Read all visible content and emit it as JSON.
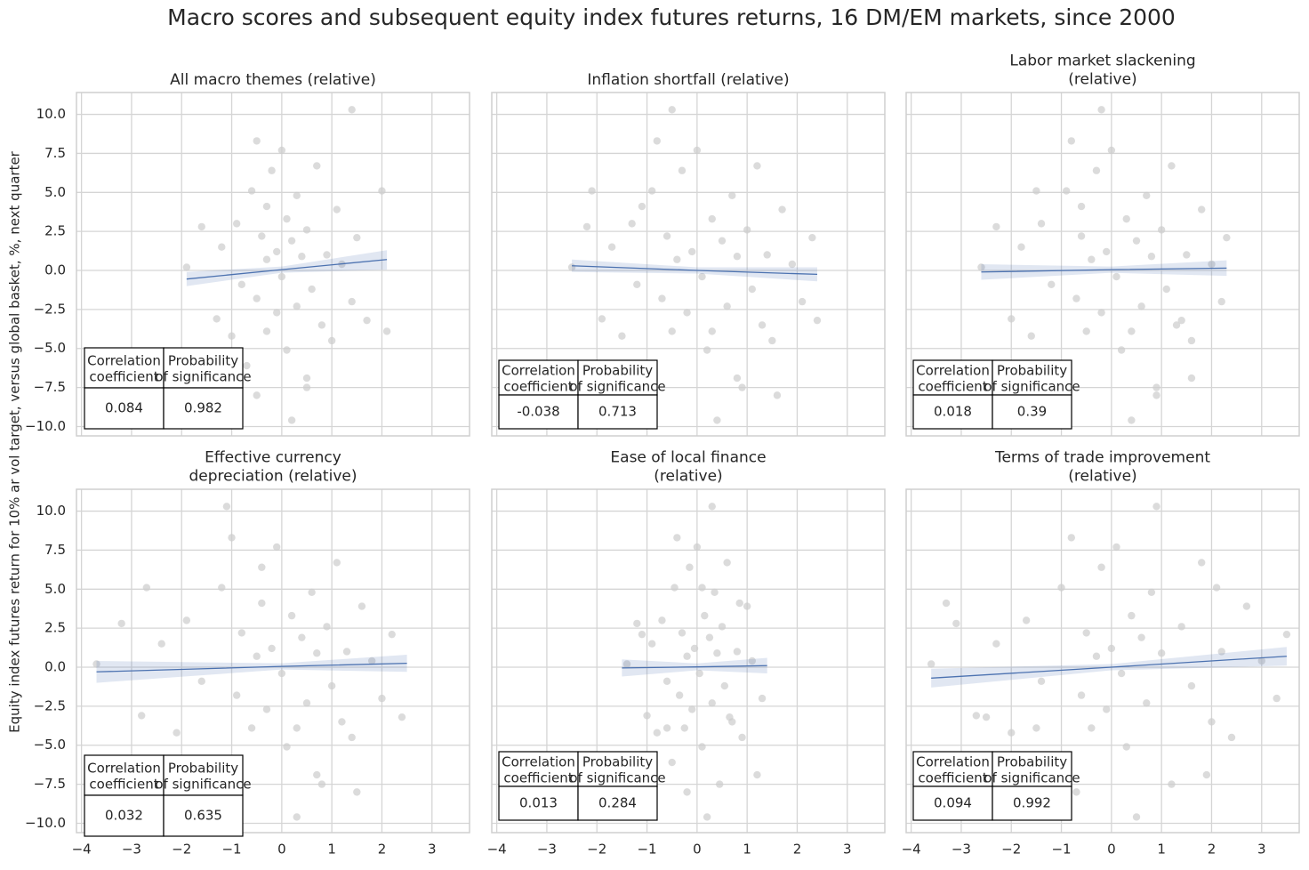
{
  "title": "Macro scores and subsequent equity index futures returns, 16 DM/EM markets, since 2000",
  "y_label": "Equity index futures return for 10% ar vol target, versus global basket, %, next quarter",
  "axes": {
    "xlim": [
      -4.1,
      3.75
    ],
    "ylim": [
      -10.6,
      11.4
    ],
    "xticks": [
      {
        "value": -4,
        "label": "−4"
      },
      {
        "value": -3,
        "label": "−3"
      },
      {
        "value": -2,
        "label": "−2"
      },
      {
        "value": -1,
        "label": "−1"
      },
      0,
      1,
      2,
      3
    ],
    "yticks": [
      {
        "value": -10,
        "label": "−10.0"
      },
      {
        "value": -7.5,
        "label": "−7.5"
      },
      {
        "value": -5,
        "label": "−5.0"
      },
      {
        "value": -2.5,
        "label": "−2.5"
      },
      {
        "value": 0,
        "label": "0.0"
      },
      2.5,
      {
        "value": 5,
        "label": "5.0"
      },
      7.5,
      {
        "value": 10,
        "label": "10.0"
      }
    ],
    "grid": true
  },
  "chart_data": [
    {
      "type": "scatter",
      "title": "All macro themes (relative)",
      "color": "#cccccc",
      "x": [
        -1.9,
        -1.6,
        -1.3,
        -1.2,
        -1.0,
        -0.9,
        -0.8,
        -0.7,
        -0.6,
        -0.5,
        -0.5,
        -0.4,
        -0.3,
        -0.3,
        -0.2,
        -0.1,
        -0.1,
        0,
        0,
        0.1,
        0.1,
        0.2,
        0.2,
        0.3,
        0.3,
        0.4,
        0.5,
        0.5,
        0.6,
        0.7,
        0.8,
        0.9,
        1.0,
        1.1,
        1.2,
        1.4,
        1.5,
        1.7,
        2.0,
        2.1,
        1.4,
        -0.5,
        0.5,
        -0.3
      ],
      "y": [
        0.2,
        2.8,
        -3.1,
        1.5,
        -4.2,
        3.0,
        -0.9,
        -6.1,
        5.1,
        8.3,
        -1.8,
        2.2,
        -3.9,
        0.7,
        6.4,
        -2.7,
        1.2,
        7.7,
        -0.4,
        -5.1,
        3.3,
        -9.6,
        1.9,
        -2.3,
        4.8,
        0.9,
        -7.5,
        2.6,
        -1.2,
        6.7,
        -3.5,
        1.0,
        -4.5,
        3.9,
        0.4,
        -2.0,
        2.1,
        -3.2,
        5.1,
        -3.9,
        10.3,
        -8.0,
        -6.9,
        4.1
      ],
      "fit": {
        "color": "#4c72b0",
        "x": [
          -1.9,
          0,
          2.1
        ],
        "y": [
          -0.55,
          0.05,
          0.7
        ],
        "lower": [
          -1.0,
          -0.15,
          0.05
        ],
        "upper": [
          -0.1,
          0.25,
          1.3
        ]
      },
      "table": {
        "header": [
          "Correlation\ncoefficient",
          "Probability\nof significance"
        ],
        "values": [
          0.084,
          0.982
        ]
      }
    },
    {
      "type": "scatter",
      "title": "Inflation shortfall (relative)",
      "color": "#cccccc",
      "x": [
        -2.5,
        -2.2,
        -1.9,
        -1.7,
        -1.5,
        -1.3,
        -1.2,
        -1.0,
        -0.9,
        -0.8,
        -0.7,
        -0.6,
        -0.5,
        -0.4,
        -0.3,
        -0.2,
        -0.1,
        0,
        0.1,
        0.2,
        0.3,
        0.4,
        0.5,
        0.6,
        0.7,
        0.8,
        0.9,
        1.0,
        1.1,
        1.2,
        1.3,
        1.4,
        1.5,
        1.7,
        1.9,
        2.1,
        2.3,
        2.4,
        -2.1,
        0.3,
        -0.5,
        1.6,
        0.8,
        -1.1
      ],
      "y": [
        0.2,
        2.8,
        -3.1,
        1.5,
        -4.2,
        3.0,
        -0.9,
        -6.1,
        5.1,
        8.3,
        -1.8,
        2.2,
        -3.9,
        0.7,
        6.4,
        -2.7,
        1.2,
        7.7,
        -0.4,
        -5.1,
        3.3,
        -9.6,
        1.9,
        -2.3,
        4.8,
        0.9,
        -7.5,
        2.6,
        -1.2,
        6.7,
        -3.5,
        1.0,
        -4.5,
        3.9,
        0.4,
        -2.0,
        2.1,
        -3.2,
        5.1,
        -3.9,
        10.3,
        -8.0,
        -6.9,
        4.1
      ],
      "fit": {
        "color": "#4c72b0",
        "x": [
          -2.5,
          0,
          2.4
        ],
        "y": [
          0.3,
          0.0,
          -0.25
        ],
        "lower": [
          -0.1,
          -0.2,
          -0.7
        ],
        "upper": [
          0.7,
          0.2,
          0.2
        ]
      },
      "table": {
        "header": [
          "Correlation\ncoefficient",
          "Probability\nof significance"
        ],
        "values": [
          -0.038,
          0.713
        ]
      }
    },
    {
      "type": "scatter",
      "title": "Labor market slackening\n(relative)",
      "color": "#cccccc",
      "x": [
        -2.6,
        -2.3,
        -2.0,
        -1.8,
        -1.6,
        -1.4,
        -1.2,
        -1.0,
        -0.9,
        -0.8,
        -0.7,
        -0.6,
        -0.5,
        -0.4,
        -0.3,
        -0.2,
        -0.1,
        0,
        0.1,
        0.2,
        0.3,
        0.4,
        0.5,
        0.6,
        0.7,
        0.8,
        0.9,
        1.0,
        1.1,
        1.2,
        1.3,
        1.5,
        1.6,
        1.8,
        2.0,
        2.2,
        2.3,
        1.4,
        -1.5,
        0.4,
        -0.2,
        0.9,
        1.6,
        -0.6
      ],
      "y": [
        0.2,
        2.8,
        -3.1,
        1.5,
        -4.2,
        3.0,
        -0.9,
        -6.1,
        5.1,
        8.3,
        -1.8,
        2.2,
        -3.9,
        0.7,
        6.4,
        -2.7,
        1.2,
        7.7,
        -0.4,
        -5.1,
        3.3,
        -9.6,
        1.9,
        -2.3,
        4.8,
        0.9,
        -7.5,
        2.6,
        -1.2,
        6.7,
        -3.5,
        1.0,
        -4.5,
        3.9,
        0.4,
        -2.0,
        2.1,
        -3.2,
        5.1,
        -3.9,
        10.3,
        -8.0,
        -6.9,
        4.1
      ],
      "fit": {
        "color": "#4c72b0",
        "x": [
          -2.6,
          0,
          2.3
        ],
        "y": [
          -0.1,
          0.05,
          0.15
        ],
        "lower": [
          -0.6,
          -0.15,
          -0.35
        ],
        "upper": [
          0.4,
          0.25,
          0.65
        ]
      },
      "table": {
        "header": [
          "Correlation\ncoefficient",
          "Probability\nof significance"
        ],
        "values": [
          0.018,
          0.39
        ]
      }
    },
    {
      "type": "scatter",
      "title": "Effective currency\ndepreciation (relative)",
      "color": "#cccccc",
      "x": [
        -3.7,
        -3.2,
        -2.8,
        -2.4,
        -2.1,
        -1.9,
        -1.6,
        -1.4,
        -1.2,
        -1.0,
        -0.9,
        -0.8,
        -0.6,
        -0.5,
        -0.4,
        -0.3,
        -0.2,
        -0.1,
        0,
        0.1,
        0.2,
        0.3,
        0.4,
        0.5,
        0.6,
        0.7,
        0.8,
        0.9,
        1.0,
        1.1,
        1.2,
        1.3,
        1.4,
        1.6,
        1.8,
        2.0,
        2.2,
        2.4,
        -2.7,
        0.3,
        -1.1,
        1.5,
        0.7,
        -0.4
      ],
      "y": [
        0.2,
        2.8,
        -3.1,
        1.5,
        -4.2,
        3.0,
        -0.9,
        -6.1,
        5.1,
        8.3,
        -1.8,
        2.2,
        -3.9,
        0.7,
        6.4,
        -2.7,
        1.2,
        7.7,
        -0.4,
        -5.1,
        3.3,
        -9.6,
        1.9,
        -2.3,
        4.8,
        0.9,
        -7.5,
        2.6,
        -1.2,
        6.7,
        -3.5,
        1.0,
        -4.5,
        3.9,
        0.4,
        -2.0,
        2.1,
        -3.2,
        5.1,
        -3.9,
        10.3,
        -8.0,
        -6.9,
        4.1
      ],
      "fit": {
        "color": "#4c72b0",
        "x": [
          -3.7,
          0,
          2.5
        ],
        "y": [
          -0.3,
          0.05,
          0.25
        ],
        "lower": [
          -1.0,
          -0.15,
          -0.3
        ],
        "upper": [
          0.4,
          0.25,
          0.8
        ]
      },
      "table": {
        "header": [
          "Correlation\ncoefficient",
          "Probability\nof significance"
        ],
        "values": [
          0.032,
          0.635
        ]
      }
    },
    {
      "type": "scatter",
      "title": "Ease of local finance\n(relative)",
      "color": "#cccccc",
      "x": [
        -1.4,
        -1.2,
        -1.0,
        -0.9,
        -0.8,
        -0.7,
        -0.6,
        -0.5,
        -0.45,
        -0.4,
        -0.35,
        -0.3,
        -0.25,
        -0.2,
        -0.15,
        -0.1,
        -0.05,
        0,
        0.05,
        0.1,
        0.15,
        0.2,
        0.25,
        0.3,
        0.35,
        0.4,
        0.45,
        0.5,
        0.55,
        0.6,
        0.7,
        0.8,
        0.9,
        1.0,
        1.1,
        1.3,
        -1.1,
        0.65,
        0.1,
        -0.6,
        0.3,
        -0.2,
        1.2,
        0.85
      ],
      "y": [
        0.2,
        2.8,
        -3.1,
        1.5,
        -4.2,
        3.0,
        -0.9,
        -6.1,
        5.1,
        8.3,
        -1.8,
        2.2,
        -3.9,
        0.7,
        6.4,
        -2.7,
        1.2,
        7.7,
        -0.4,
        -5.1,
        3.3,
        -9.6,
        1.9,
        -2.3,
        4.8,
        0.9,
        -7.5,
        2.6,
        -1.2,
        6.7,
        -3.5,
        1.0,
        -4.5,
        3.9,
        0.4,
        -2.0,
        2.1,
        -3.2,
        5.1,
        -3.9,
        10.3,
        -8.0,
        -6.9,
        4.1
      ],
      "fit": {
        "color": "#4c72b0",
        "x": [
          -1.5,
          0,
          1.4
        ],
        "y": [
          -0.05,
          0.02,
          0.1
        ],
        "lower": [
          -0.6,
          -0.2,
          -0.4
        ],
        "upper": [
          0.5,
          0.24,
          0.6
        ]
      },
      "table": {
        "header": [
          "Correlation\ncoefficient",
          "Probability\nof significance"
        ],
        "values": [
          0.013,
          0.284
        ]
      }
    },
    {
      "type": "scatter",
      "title": "Terms of trade improvement\n(relative)",
      "color": "#cccccc",
      "x": [
        -3.6,
        -3.1,
        -2.7,
        -2.3,
        -2.0,
        -1.7,
        -1.4,
        -1.2,
        -1.0,
        -0.8,
        -0.6,
        -0.5,
        -0.4,
        -0.3,
        -0.2,
        -0.1,
        0,
        0.1,
        0.2,
        0.3,
        0.4,
        0.5,
        0.6,
        0.7,
        0.8,
        1.0,
        1.2,
        1.4,
        1.6,
        1.8,
        2.0,
        2.2,
        2.4,
        2.7,
        3.0,
        3.3,
        3.5,
        -2.5,
        2.1,
        -1.5,
        0.9,
        -0.7,
        1.9,
        -3.3
      ],
      "y": [
        0.2,
        2.8,
        -3.1,
        1.5,
        -4.2,
        3.0,
        -0.9,
        -6.1,
        5.1,
        8.3,
        -1.8,
        2.2,
        -3.9,
        0.7,
        6.4,
        -2.7,
        1.2,
        7.7,
        -0.4,
        -5.1,
        3.3,
        -9.6,
        1.9,
        -2.3,
        4.8,
        0.9,
        -7.5,
        2.6,
        -1.2,
        6.7,
        -3.5,
        1.0,
        -4.5,
        3.9,
        0.4,
        -2.0,
        2.1,
        -3.2,
        5.1,
        -3.9,
        10.3,
        -8.0,
        -6.9,
        4.1
      ],
      "fit": {
        "color": "#4c72b0",
        "x": [
          -3.6,
          0,
          3.5
        ],
        "y": [
          -0.7,
          0,
          0.7
        ],
        "lower": [
          -1.3,
          -0.2,
          0.1
        ],
        "upper": [
          -0.1,
          0.2,
          1.3
        ]
      },
      "table": {
        "header": [
          "Correlation\ncoefficient",
          "Probability\nof significance"
        ],
        "values": [
          0.094,
          0.992
        ]
      }
    }
  ]
}
